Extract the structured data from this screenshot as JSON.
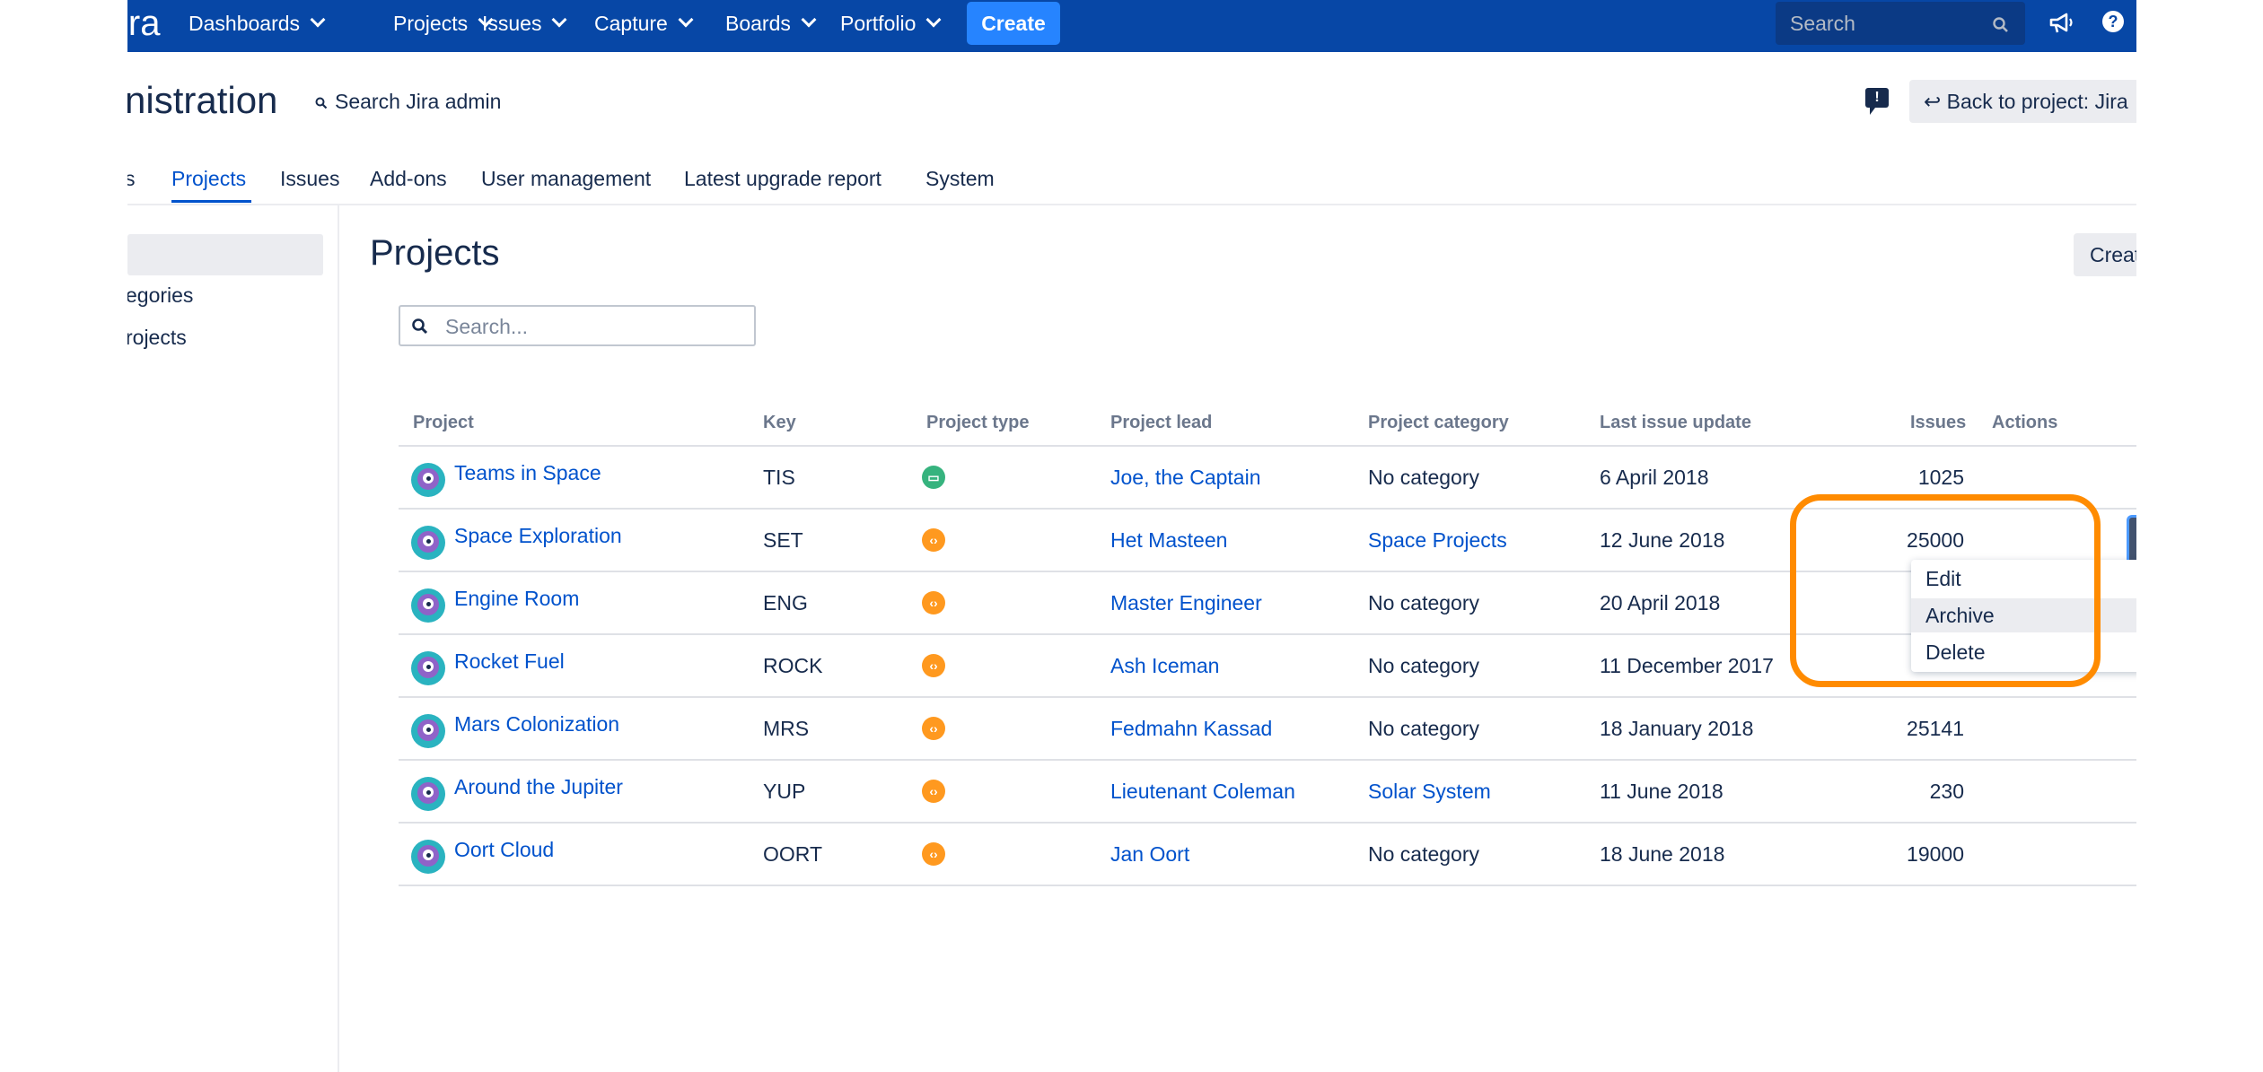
{
  "topnav": {
    "logo": "ira",
    "items": [
      "Dashboards",
      "Projects",
      "Issues",
      "Capture",
      "Boards",
      "Portfolio"
    ],
    "create_label": "Create",
    "search_placeholder": "Search",
    "accent": "#0747a6"
  },
  "admin": {
    "title": "nistration",
    "search_label": "Search Jira admin",
    "back_label": "Back to project: Jira"
  },
  "tabs": [
    "s",
    "Projects",
    "Issues",
    "Add-ons",
    "User management",
    "Latest upgrade report",
    "System"
  ],
  "sidebar": {
    "items": [
      "egories",
      "rojects"
    ]
  },
  "main": {
    "title": "Projects",
    "create_label": "Creat",
    "search_placeholder": "Search..."
  },
  "table": {
    "headers": [
      "Project",
      "Key",
      "Project type",
      "Project lead",
      "Project category",
      "Last issue update",
      "Issues",
      "Actions"
    ],
    "rows": [
      {
        "name": "Teams in Space",
        "key": "TIS",
        "type": "service-desk-icon",
        "lead": "Joe, the Captain",
        "category": "No category",
        "category_link": false,
        "updated": "6 April 2018",
        "issues": "1025"
      },
      {
        "name": "Space Exploration",
        "key": "SET",
        "type": "software-icon",
        "lead": "Het Masteen",
        "category": "Space Projects",
        "category_link": true,
        "updated": "12 June 2018",
        "issues": "25000"
      },
      {
        "name": "Engine Room",
        "key": "ENG",
        "type": "software-icon",
        "lead": "Master Engineer",
        "category": "No category",
        "category_link": false,
        "updated": "20 April 2018",
        "issues": ""
      },
      {
        "name": "Rocket Fuel",
        "key": "ROCK",
        "type": "software-icon",
        "lead": "Ash Iceman",
        "category": "No category",
        "category_link": false,
        "updated": "11 December 2017",
        "issues": ""
      },
      {
        "name": "Mars Colonization",
        "key": "MRS",
        "type": "software-icon",
        "lead": "Fedmahn Kassad",
        "category": "No category",
        "category_link": false,
        "updated": "18 January 2018",
        "issues": "25141"
      },
      {
        "name": "Around the Jupiter",
        "key": "YUP",
        "type": "software-icon",
        "lead": "Lieutenant Coleman",
        "category": "Solar System",
        "category_link": true,
        "updated": "11 June 2018",
        "issues": "230"
      },
      {
        "name": "Oort Cloud",
        "key": "OORT",
        "type": "software-icon",
        "lead": "Jan Oort",
        "category": "No category",
        "category_link": false,
        "updated": "18 June 2018",
        "issues": "19000"
      }
    ]
  },
  "dropdown": {
    "items": [
      "Edit",
      "Archive",
      "Delete"
    ],
    "hovered": "Archive"
  },
  "highlight_color": "#ff8b00"
}
